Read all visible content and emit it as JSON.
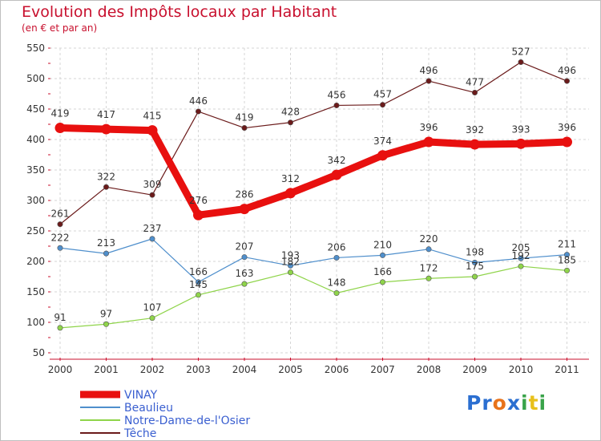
{
  "header": {
    "title": "Evolution des Impôts locaux par Habitant",
    "subtitle": "(en € et par an)"
  },
  "logo": {
    "text": "Proxiti",
    "letters": [
      "P",
      "r",
      "o",
      "x",
      "i",
      "t",
      "i"
    ],
    "colors": [
      "#2b6fd1",
      "#2b6fd1",
      "#e8731b",
      "#2b6fd1",
      "#3aa34a",
      "#e8c01b",
      "#3aa34a"
    ]
  },
  "chart_data": {
    "type": "line",
    "x": [
      "2000",
      "2001",
      "2002",
      "2003",
      "2004",
      "2005",
      "2006",
      "2007",
      "2008",
      "2009",
      "2010",
      "2011"
    ],
    "ylim": [
      50,
      550
    ],
    "yticks": [
      50,
      100,
      150,
      200,
      250,
      300,
      350,
      400,
      450,
      500,
      550
    ],
    "legend_position": "bottom-left",
    "series": [
      {
        "name": "VINAY",
        "color": "#e8100f",
        "values": [
          419,
          417,
          415,
          276,
          286,
          312,
          342,
          374,
          396,
          392,
          393,
          396
        ],
        "labels": [
          "419",
          "417",
          "415",
          "276",
          "286",
          "312",
          "342",
          "374",
          "396",
          "392",
          "393",
          "396"
        ]
      },
      {
        "name": "Beaulieu",
        "color": "#4f8fcc",
        "values": [
          222,
          213,
          237,
          166,
          207,
          193,
          206,
          210,
          220,
          198,
          205,
          211
        ],
        "labels": [
          "222",
          "213",
          "237",
          "166",
          "207",
          "193",
          "206",
          "210",
          "220",
          "198",
          "205",
          "211"
        ]
      },
      {
        "name": "Notre-Dame-de-l'Osier",
        "color": "#8fd44a",
        "values": [
          91,
          97,
          107,
          145,
          163,
          182,
          148,
          166,
          172,
          175,
          192,
          185
        ],
        "labels": [
          "91",
          "97",
          "107",
          "145",
          "163",
          "182",
          "148",
          "166",
          "172",
          "175",
          "192",
          "185"
        ]
      },
      {
        "name": "Têche",
        "color": "#6b1b1b",
        "values": [
          261,
          322,
          309,
          446,
          419,
          428,
          456,
          457,
          496,
          477,
          527,
          496
        ],
        "labels": [
          "261",
          "322",
          "309",
          "446",
          "419",
          "428",
          "456",
          "457",
          "496",
          "477",
          "527",
          "496"
        ]
      }
    ]
  }
}
